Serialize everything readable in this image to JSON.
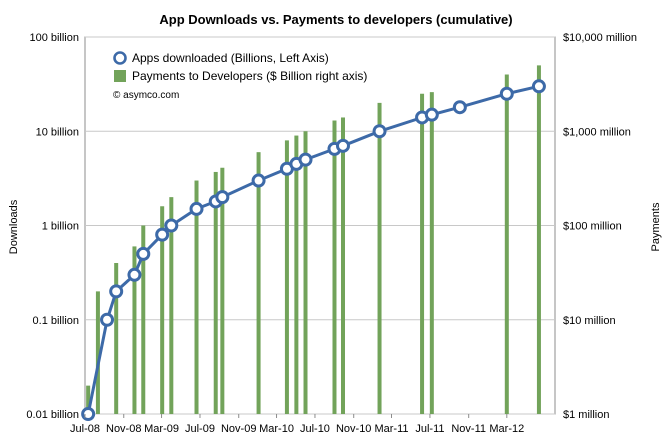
{
  "chart_data": {
    "type": "bar+line",
    "title": "App Downloads vs. Payments to developers (cumulative)",
    "source": "© asymco.com",
    "ylabel_left": "Downloads",
    "ylabel_right": "Payments",
    "y_left_scale": "log",
    "y_right_scale": "log",
    "y_left_range": [
      0.01,
      100
    ],
    "y_right_range": [
      1,
      10000
    ],
    "y_left_ticks": [
      {
        "value": 0.01,
        "label": "0.01 billion"
      },
      {
        "value": 0.1,
        "label": "0.1 billion"
      },
      {
        "value": 1,
        "label": "1 billion"
      },
      {
        "value": 10,
        "label": "10 billion"
      },
      {
        "value": 100,
        "label": "100 billion"
      }
    ],
    "y_right_ticks": [
      {
        "value": 1,
        "label": "$1 million"
      },
      {
        "value": 10,
        "label": "$10 million"
      },
      {
        "value": 100,
        "label": "$100 million"
      },
      {
        "value": 1000,
        "label": "$1,000 million"
      },
      {
        "value": 10000,
        "label": "$10,000 million"
      }
    ],
    "x_range": [
      "2008-07-01",
      "2012-08-01"
    ],
    "x_ticks": [
      {
        "date": "2008-07-01",
        "label": "Jul-08"
      },
      {
        "date": "2008-11-01",
        "label": "Nov-08"
      },
      {
        "date": "2009-03-01",
        "label": "Mar-09"
      },
      {
        "date": "2009-07-01",
        "label": "Jul-09"
      },
      {
        "date": "2009-11-01",
        "label": "Nov-09"
      },
      {
        "date": "2010-03-01",
        "label": "Mar-10"
      },
      {
        "date": "2010-07-01",
        "label": "Jul-10"
      },
      {
        "date": "2010-11-01",
        "label": "Nov-10"
      },
      {
        "date": "2011-03-01",
        "label": "Mar-11"
      },
      {
        "date": "2011-07-01",
        "label": "Jul-11"
      },
      {
        "date": "2011-11-01",
        "label": "Nov-11"
      },
      {
        "date": "2012-03-01",
        "label": "Mar-12"
      }
    ],
    "grid": "horizontal",
    "legend_placement": "top-left",
    "series": [
      {
        "name": "Apps downloaded (Billions, Left Axis)",
        "type": "line",
        "axis": "left",
        "color": "#3d6aa8",
        "points": [
          {
            "date": "2008-07-11",
            "value": 0.01
          },
          {
            "date": "2008-09-09",
            "value": 0.1
          },
          {
            "date": "2008-10-08",
            "value": 0.2
          },
          {
            "date": "2008-12-05",
            "value": 0.3
          },
          {
            "date": "2009-01-02",
            "value": 0.5
          },
          {
            "date": "2009-03-03",
            "value": 0.8
          },
          {
            "date": "2009-04-01",
            "value": 1
          },
          {
            "date": "2009-06-20",
            "value": 1.5
          },
          {
            "date": "2009-08-20",
            "value": 1.8
          },
          {
            "date": "2009-09-10",
            "value": 2
          },
          {
            "date": "2010-01-03",
            "value": 3
          },
          {
            "date": "2010-04-03",
            "value": 4
          },
          {
            "date": "2010-05-03",
            "value": 4.5
          },
          {
            "date": "2010-06-01",
            "value": 5
          },
          {
            "date": "2010-09-01",
            "value": 6.5
          },
          {
            "date": "2010-09-28",
            "value": 7
          },
          {
            "date": "2011-01-22",
            "value": 10
          },
          {
            "date": "2011-06-06",
            "value": 14
          },
          {
            "date": "2011-07-07",
            "value": 15
          },
          {
            "date": "2011-10-04",
            "value": 18
          },
          {
            "date": "2012-03-01",
            "value": 25
          },
          {
            "date": "2012-06-11",
            "value": 30
          }
        ]
      },
      {
        "name": "Payments to Developers ($ Billion right axis)",
        "type": "bar",
        "axis": "right",
        "color": "#72a35a",
        "bars": [
          {
            "date": "2008-07-11",
            "value": 2
          },
          {
            "date": "2008-08-11",
            "value": 20
          },
          {
            "date": "2008-10-08",
            "value": 40
          },
          {
            "date": "2008-12-05",
            "value": 60
          },
          {
            "date": "2009-01-02",
            "value": 100
          },
          {
            "date": "2009-03-03",
            "value": 160
          },
          {
            "date": "2009-04-01",
            "value": 200
          },
          {
            "date": "2009-06-20",
            "value": 300
          },
          {
            "date": "2009-08-20",
            "value": 370
          },
          {
            "date": "2009-09-10",
            "value": 410
          },
          {
            "date": "2010-01-03",
            "value": 600
          },
          {
            "date": "2010-04-03",
            "value": 800
          },
          {
            "date": "2010-05-03",
            "value": 900
          },
          {
            "date": "2010-06-01",
            "value": 1000
          },
          {
            "date": "2010-09-01",
            "value": 1300
          },
          {
            "date": "2010-09-28",
            "value": 1400
          },
          {
            "date": "2011-01-22",
            "value": 2000
          },
          {
            "date": "2011-06-06",
            "value": 2500
          },
          {
            "date": "2011-07-07",
            "value": 2600
          },
          {
            "date": "2012-03-01",
            "value": 4000
          },
          {
            "date": "2012-06-11",
            "value": 5000
          }
        ]
      }
    ]
  }
}
